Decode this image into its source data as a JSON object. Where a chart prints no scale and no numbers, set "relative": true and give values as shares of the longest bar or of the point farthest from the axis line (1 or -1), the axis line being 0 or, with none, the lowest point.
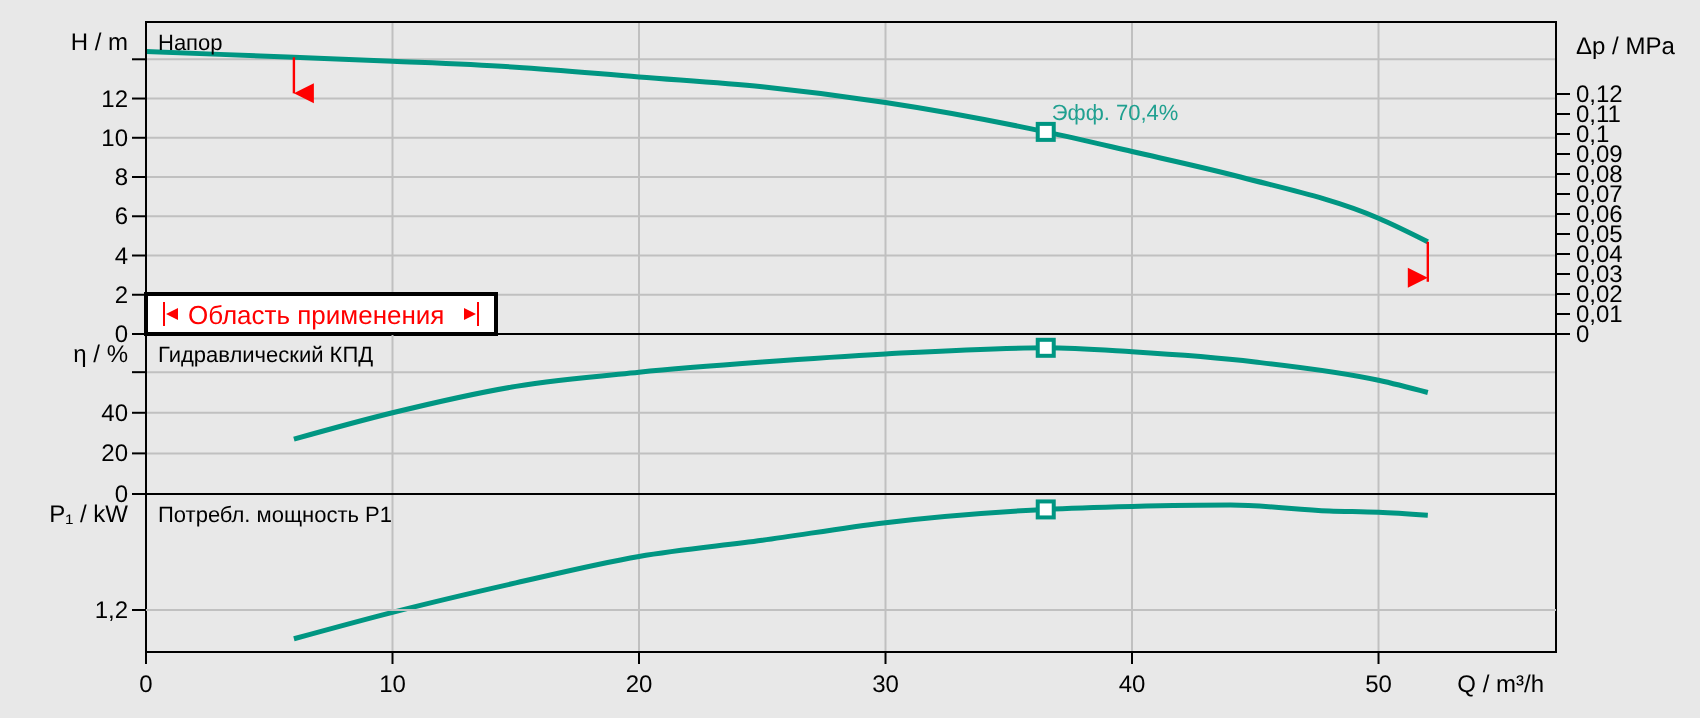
{
  "chart_data": [
    {
      "type": "line",
      "title": "Напор",
      "ylabel": "H / m",
      "y2label": "Δp / MPa",
      "xlim": [
        0,
        57.2
      ],
      "xticks": [
        0,
        10,
        20,
        30,
        40,
        50
      ],
      "ylim": [
        0,
        15.9
      ],
      "yticks": [
        0,
        2,
        4,
        6,
        8,
        10,
        12,
        {
          "value": 14,
          "label": null
        }
      ],
      "y2lim": [
        0,
        0.156
      ],
      "y2ticks": [
        0,
        {
          "value": 0.01,
          "label": "0,01"
        },
        {
          "value": 0.02,
          "label": "0,02"
        },
        {
          "value": 0.03,
          "label": "0,03"
        },
        {
          "value": 0.04,
          "label": "0,04"
        },
        {
          "value": 0.05,
          "label": "0,05"
        },
        {
          "value": 0.06,
          "label": "0,06"
        },
        {
          "value": 0.07,
          "label": "0,07"
        },
        {
          "value": 0.08,
          "label": "0,08"
        },
        {
          "value": 0.09,
          "label": "0,09"
        },
        {
          "value": 0.1,
          "label": "0,1"
        },
        {
          "value": 0.11,
          "label": "0,11"
        },
        {
          "value": 0.12,
          "label": "0,12"
        }
      ],
      "grid": true,
      "tick_labels": "y",
      "series": [
        {
          "color": "#009682",
          "x": [
            0,
            6,
            10,
            15,
            20,
            25,
            30,
            36.5,
            40,
            44.4,
            50,
            52
          ],
          "values": [
            14.4,
            14.1,
            13.9,
            13.6,
            13.1,
            12.6,
            11.8,
            10.3,
            9.3,
            8,
            5.9,
            4.7
          ]
        },
        {
          "type": "scatter",
          "marker": "square",
          "color": "#009682",
          "x": [
            36.5
          ],
          "values": [
            10.3
          ]
        }
      ],
      "annotations": [
        {
          "text": "Эфф.  70,4%",
          "x": 36.5,
          "y": 10.3
        },
        "Область применения"
      ]
    },
    {
      "type": "line",
      "title": "Гидравлический КПД",
      "ylabel": "η / %",
      "xlim": [
        0,
        57.2
      ],
      "xticks": [
        0,
        10,
        20,
        30,
        40,
        50
      ],
      "ylim": [
        0,
        78.8
      ],
      "yticks": [
        0,
        20,
        40,
        {
          "value": 60,
          "label": null
        }
      ],
      "grid": true,
      "tick_labels": "y",
      "series": [
        {
          "color": "#009682",
          "x": [
            6,
            10,
            15,
            20,
            25,
            30,
            36.5,
            40,
            45,
            50,
            52
          ],
          "values": [
            27,
            40,
            53,
            60,
            65,
            69,
            72,
            70,
            65,
            56,
            50
          ]
        },
        {
          "type": "scatter",
          "marker": "square",
          "color": "#009682",
          "x": [
            36.5
          ],
          "values": [
            72
          ]
        }
      ]
    },
    {
      "type": "line",
      "title": "Потребл. мощность P1",
      "ylabel": "P₁ / kW",
      "xlabel": "Q / m³/h",
      "relative": true,
      "xlim": [
        0,
        57.2
      ],
      "xticks": [
        0,
        10,
        20,
        30,
        40,
        50
      ],
      "grid": true,
      "series": [
        {
          "color": "#009682",
          "x": [
            6,
            10,
            15,
            20,
            25,
            30,
            36.5,
            40,
            44,
            48,
            50,
            52
          ],
          "values": [
            0.09,
            0.27,
            0.47,
            0.65,
            0.76,
            0.88,
            0.97,
            0.99,
            1,
            0.96,
            0.95,
            0.93
          ]
        },
        {
          "type": "scatter",
          "marker": "square",
          "color": "#009682",
          "x": [
            36.5
          ],
          "values": [
            0.97
          ]
        }
      ],
      "annotations": [
        "1,2"
      ]
    }
  ]
}
